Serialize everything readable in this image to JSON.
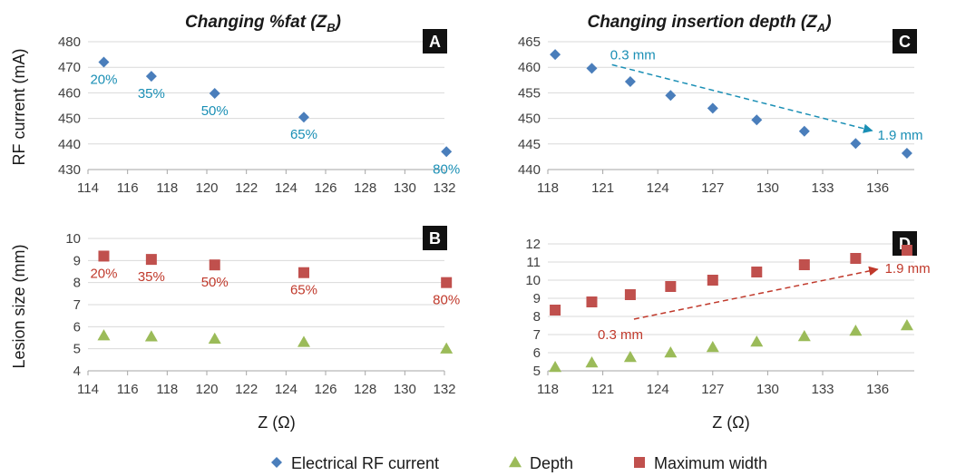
{
  "chart_data": [
    {
      "id": "A",
      "type": "scatter",
      "title_main": "Changing %fat (Z",
      "title_sub": "B",
      "title_tail": ")",
      "ylabel": "RF current (mA)",
      "xlabel": "",
      "xlim": [
        114,
        132
      ],
      "xticks": [
        114,
        116,
        118,
        120,
        122,
        124,
        126,
        128,
        130,
        132
      ],
      "ylim": [
        430,
        480
      ],
      "yticks": [
        430,
        440,
        450,
        460,
        470,
        480
      ],
      "series": [
        {
          "name": "Electrical RF current",
          "marker": "diamond",
          "color": "#4a7ebb",
          "points": [
            [
              114.8,
              472
            ],
            [
              117.2,
              466.5
            ],
            [
              120.4,
              459.8
            ],
            [
              124.9,
              450.5
            ],
            [
              132.1,
              437
            ]
          ]
        }
      ],
      "point_labels": [
        {
          "text": "20%",
          "x": 114.8,
          "y": 472
        },
        {
          "text": "35%",
          "x": 117.2,
          "y": 466.5
        },
        {
          "text": "50%",
          "x": 120.4,
          "y": 459.8
        },
        {
          "text": "65%",
          "x": 124.9,
          "y": 450.5
        },
        {
          "text": "80%",
          "x": 132.1,
          "y": 437
        }
      ],
      "label_color": "#1a8fb5"
    },
    {
      "id": "B",
      "type": "scatter",
      "ylabel": "Lesion size (mm)",
      "xlabel": "Z (Ω)",
      "xlim": [
        114,
        132
      ],
      "xticks": [
        114,
        116,
        118,
        120,
        122,
        124,
        126,
        128,
        130,
        132
      ],
      "ylim": [
        4,
        10
      ],
      "yticks": [
        4,
        5,
        6,
        7,
        8,
        9,
        10
      ],
      "series": [
        {
          "name": "Maximum width",
          "marker": "square",
          "color": "#c0504d",
          "points": [
            [
              114.8,
              9.2
            ],
            [
              117.2,
              9.05
            ],
            [
              120.4,
              8.8
            ],
            [
              124.9,
              8.45
            ],
            [
              132.1,
              8.0
            ]
          ]
        },
        {
          "name": "Depth",
          "marker": "triangle",
          "color": "#9bbb59",
          "points": [
            [
              114.8,
              5.6
            ],
            [
              117.2,
              5.55
            ],
            [
              120.4,
              5.45
            ],
            [
              124.9,
              5.3
            ],
            [
              132.1,
              5.0
            ]
          ]
        }
      ],
      "point_labels": [
        {
          "text": "20%",
          "x": 114.8,
          "y": 9.2
        },
        {
          "text": "35%",
          "x": 117.2,
          "y": 9.05
        },
        {
          "text": "50%",
          "x": 120.4,
          "y": 8.8
        },
        {
          "text": "65%",
          "x": 124.9,
          "y": 8.45
        },
        {
          "text": "80%",
          "x": 132.1,
          "y": 8.0
        }
      ],
      "label_color": "#c0392b"
    },
    {
      "id": "C",
      "type": "scatter",
      "title_main": "Changing insertion depth (Z",
      "title_sub": "A",
      "title_tail": ")",
      "ylabel": "",
      "xlabel": "",
      "xlim": [
        118,
        138
      ],
      "xticks": [
        118,
        121,
        124,
        127,
        130,
        133,
        136
      ],
      "ylim": [
        440,
        465
      ],
      "yticks": [
        440,
        445,
        450,
        455,
        460,
        465
      ],
      "series": [
        {
          "name": "Electrical RF current",
          "marker": "diamond",
          "color": "#4a7ebb",
          "points": [
            [
              118.4,
              462.5
            ],
            [
              120.4,
              459.8
            ],
            [
              122.5,
              457.2
            ],
            [
              124.7,
              454.5
            ],
            [
              127.0,
              452.0
            ],
            [
              129.4,
              449.7
            ],
            [
              132.0,
              447.5
            ],
            [
              134.8,
              445.1
            ],
            [
              137.6,
              443.2
            ]
          ]
        }
      ],
      "arrow": {
        "from_label": "0.3 mm",
        "to_label": "1.9 mm",
        "from": [
          121.5,
          460.5
        ],
        "to": [
          135.7,
          447.6
        ],
        "color": "#1a8fb5"
      }
    },
    {
      "id": "D",
      "type": "scatter",
      "ylabel": "",
      "xlabel": "Z (Ω)",
      "xlim": [
        118,
        138
      ],
      "xticks": [
        118,
        121,
        124,
        127,
        130,
        133,
        136
      ],
      "ylim": [
        5,
        12
      ],
      "yticks": [
        5,
        6,
        7,
        8,
        9,
        10,
        11,
        12
      ],
      "series": [
        {
          "name": "Maximum width",
          "marker": "square",
          "color": "#c0504d",
          "points": [
            [
              118.4,
              8.35
            ],
            [
              120.4,
              8.8
            ],
            [
              122.5,
              9.2
            ],
            [
              124.7,
              9.65
            ],
            [
              127.0,
              10.0
            ],
            [
              129.4,
              10.45
            ],
            [
              132.0,
              10.85
            ],
            [
              134.8,
              11.2
            ],
            [
              137.6,
              11.65
            ]
          ]
        },
        {
          "name": "Depth",
          "marker": "triangle",
          "color": "#9bbb59",
          "points": [
            [
              118.4,
              5.2
            ],
            [
              120.4,
              5.45
            ],
            [
              122.5,
              5.75
            ],
            [
              124.7,
              6.0
            ],
            [
              127.0,
              6.3
            ],
            [
              129.4,
              6.6
            ],
            [
              132.0,
              6.9
            ],
            [
              134.8,
              7.2
            ],
            [
              137.6,
              7.5
            ]
          ]
        }
      ],
      "arrow": {
        "from_label": "0.3 mm",
        "to_label": "1.9 mm",
        "from": [
          122.7,
          7.85
        ],
        "to": [
          136.0,
          10.6
        ],
        "color": "#c0392b"
      }
    }
  ],
  "legend": [
    {
      "name": "Electrical RF current",
      "marker": "diamond",
      "color": "#4a7ebb"
    },
    {
      "name": "Depth",
      "marker": "triangle",
      "color": "#9bbb59"
    },
    {
      "name": "Maximum width",
      "marker": "square",
      "color": "#c0504d"
    }
  ]
}
